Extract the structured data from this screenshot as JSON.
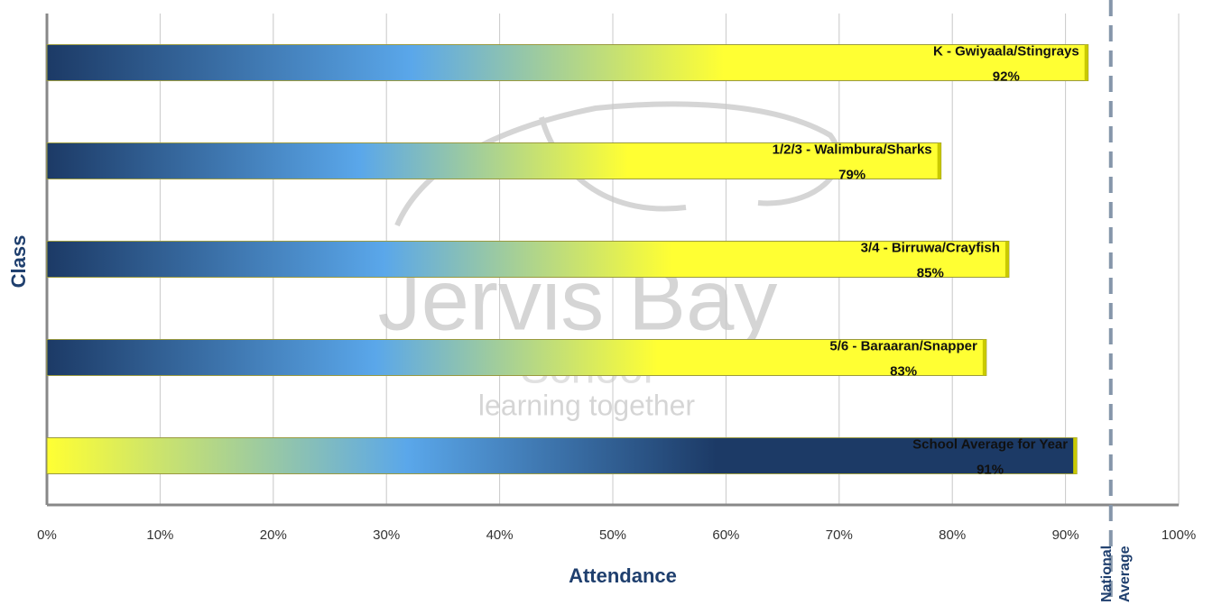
{
  "chart_data": {
    "type": "bar",
    "orientation": "horizontal",
    "categories": [
      "K - Gwiyaala/Stingrays",
      "1/2/3 - Walimbura/Sharks",
      "3/4 - Birruwa/Crayfish",
      "5/6 - Baraaran/Snapper",
      "School Average for Year"
    ],
    "values": [
      92,
      79,
      85,
      83,
      91
    ],
    "value_labels": [
      "92%",
      "79%",
      "85%",
      "83%",
      "91%"
    ],
    "colors": [
      [
        "#1c3a66",
        "#5aa7ea",
        "#ffff33"
      ],
      [
        "#1c3a66",
        "#5aa7ea",
        "#ffff33"
      ],
      [
        "#1c3a66",
        "#5aa7ea",
        "#ffff33"
      ],
      [
        "#1c3a66",
        "#5aa7ea",
        "#ffff33"
      ],
      [
        "#ffff33",
        "#5aa7ea",
        "#1c3a66"
      ]
    ],
    "x_label": "Attendance",
    "y_label": "Class",
    "xlim": [
      0,
      100
    ],
    "xticks": [
      {
        "value": 0,
        "label": "0%"
      },
      {
        "value": 10,
        "label": "10%"
      },
      {
        "value": 20,
        "label": "20%"
      },
      {
        "value": 30,
        "label": "30%"
      },
      {
        "value": 40,
        "label": "40%"
      },
      {
        "value": 50,
        "label": "50%"
      },
      {
        "value": 60,
        "label": "60%"
      },
      {
        "value": 70,
        "label": "70%"
      },
      {
        "value": 80,
        "label": "80%"
      },
      {
        "value": 90,
        "label": "90%"
      },
      {
        "value": 100,
        "label": "100%"
      }
    ],
    "grid": true,
    "reference_line": {
      "value": 94,
      "label": "National Average",
      "color": "#8596aa"
    },
    "watermark": [
      "Jervis Bay",
      "School",
      "learning together"
    ]
  }
}
